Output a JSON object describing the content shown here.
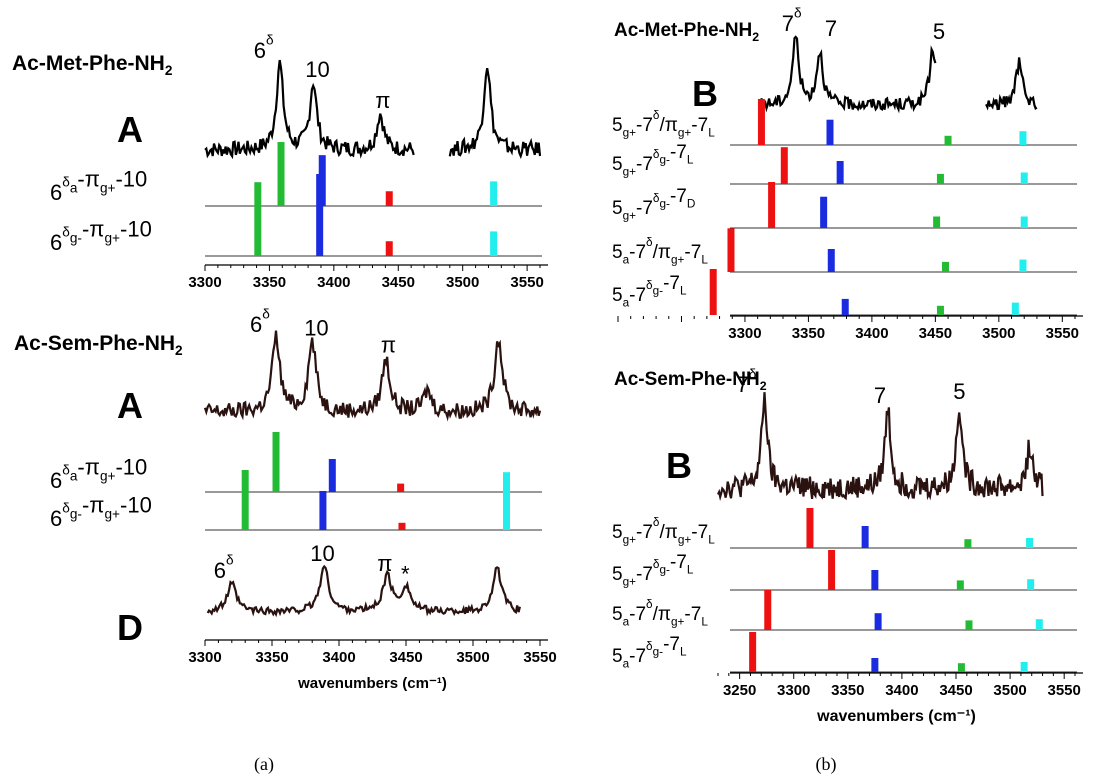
{
  "captions": {
    "a": "(a)",
    "b": "(b)"
  },
  "colors": {
    "green": "#22bb33",
    "blue": "#1a2be0",
    "red": "#ee1111",
    "cyan": "#22eeee",
    "trace": "#000000",
    "trace_dark": "#2a1210"
  },
  "chart_data": [
    {
      "id": "a-top",
      "type": "bar",
      "molecule": "Ac-Met-Phe-NH",
      "panel_letter": "A",
      "xlim": [
        3300,
        3560
      ],
      "xticks": [
        3300,
        3350,
        3400,
        3450,
        3500,
        3550
      ],
      "xlabel": "",
      "spectrum": {
        "name": "experiment",
        "segments": [
          [
            3300,
            3462
          ],
          [
            3490,
            3560
          ]
        ],
        "peaks": [
          {
            "x": 3358,
            "h": 1.0,
            "label": "6",
            "sup": "δ"
          },
          {
            "x": 3384,
            "h": 0.78,
            "label": "10"
          },
          {
            "x": 3436,
            "h": 0.42,
            "label": "π"
          },
          {
            "x": 3519,
            "h": 1.0
          }
        ]
      },
      "conformers": [
        {
          "label": {
            "base": "6",
            "sup": "δ",
            "sub": "a",
            "rest": "-π",
            "rsub": "g+",
            "tail": "-10"
          },
          "sticks": [
            {
              "x": 3359,
              "h": 0.78,
              "c": "green"
            },
            {
              "x": 3391,
              "h": 0.62,
              "c": "blue"
            },
            {
              "x": 3443,
              "h": 0.18,
              "c": "red"
            },
            {
              "x": 3524,
              "h": 0.3,
              "c": "cyan"
            }
          ]
        },
        {
          "label": {
            "base": "6",
            "sup": "δ",
            "sub": "g-",
            "rest": "-π",
            "rsub": "g+",
            "tail": "-10"
          },
          "sticks": [
            {
              "x": 3341,
              "h": 0.9,
              "c": "green"
            },
            {
              "x": 3389,
              "h": 1.0,
              "c": "blue"
            },
            {
              "x": 3443,
              "h": 0.18,
              "c": "red"
            },
            {
              "x": 3524,
              "h": 0.3,
              "c": "cyan"
            }
          ]
        }
      ]
    },
    {
      "id": "a-bottom",
      "type": "bar",
      "molecule": "Ac-Sem-Phe-NH",
      "panel_letter": "A",
      "panel_letter_2": "D",
      "xlim": [
        3300,
        3550
      ],
      "xticks": [
        3300,
        3350,
        3400,
        3450,
        3500,
        3550
      ],
      "xlabel": "wavenumbers (cm⁻¹)",
      "spectrum": {
        "name": "experiment A",
        "segments": [
          [
            3300,
            3550
          ]
        ],
        "peaks": [
          {
            "x": 3353,
            "h": 1.0,
            "label": "6",
            "sup": "δ"
          },
          {
            "x": 3380,
            "h": 0.95,
            "label": "10"
          },
          {
            "x": 3435,
            "h": 0.72,
            "label": "π"
          },
          {
            "x": 3466,
            "h": 0.28
          },
          {
            "x": 3519,
            "h": 1.0
          }
        ]
      },
      "spectrum_d": {
        "name": "experiment D",
        "peaks": [
          {
            "x": 3320,
            "h": 0.62,
            "label": "6",
            "sup": "δ"
          },
          {
            "x": 3389,
            "h": 1.0,
            "label": "10"
          },
          {
            "x": 3436,
            "h": 0.78,
            "label": "π"
          },
          {
            "x": 3450,
            "h": 0.55,
            "label": "*"
          },
          {
            "x": 3518,
            "h": 0.95
          }
        ]
      },
      "conformers": [
        {
          "label": {
            "base": "6",
            "sup": "δ",
            "sub": "a",
            "rest": "-π",
            "rsub": "g+",
            "tail": "-10"
          },
          "sticks": [
            {
              "x": 3353,
              "h": 1.0,
              "c": "green"
            },
            {
              "x": 3395,
              "h": 0.55,
              "c": "blue"
            },
            {
              "x": 3446,
              "h": 0.14,
              "c": "red"
            },
            {
              "x": 3525,
              "h": 0.33,
              "c": "cyan"
            }
          ]
        },
        {
          "label": {
            "base": "6",
            "sup": "δ",
            "sub": "g-",
            "rest": "-π",
            "rsub": "g+",
            "tail": "-10"
          },
          "sticks": [
            {
              "x": 3330,
              "h": 1.0,
              "c": "green"
            },
            {
              "x": 3388,
              "h": 0.65,
              "c": "blue"
            },
            {
              "x": 3447,
              "h": 0.12,
              "c": "red"
            },
            {
              "x": 3525,
              "h": 0.9,
              "c": "cyan"
            }
          ]
        }
      ]
    },
    {
      "id": "b-top",
      "type": "bar",
      "molecule": "Ac-Met-Phe-NH",
      "panel_letter": "B",
      "xlim": [
        3200,
        3560
      ],
      "xticks": [
        3300,
        3350,
        3400,
        3450,
        3500,
        3550
      ],
      "xlabel": "",
      "spectrum": {
        "name": "experiment",
        "segments": [
          [
            3313,
            3450
          ],
          [
            3490,
            3530
          ]
        ],
        "peaks": [
          {
            "x": 3340,
            "h": 1.0,
            "label": "7",
            "sup": "δ"
          },
          {
            "x": 3359,
            "h": 0.78,
            "label": "7"
          },
          {
            "x": 3448,
            "h": 0.82,
            "label": "5"
          },
          {
            "x": 3516,
            "h": 0.62
          }
        ]
      },
      "conformers": [
        {
          "label": {
            "base": "5",
            "sub": "g+",
            "mid": "-7",
            "sup": "δ",
            "rest": "/π",
            "rsub": "g+",
            "tail": "-7",
            "tsub": "L"
          },
          "sticks": [
            {
              "x": 3313,
              "h": 1.0,
              "c": "red"
            },
            {
              "x": 3367,
              "h": 0.55,
              "c": "blue"
            },
            {
              "x": 3460,
              "h": 0.2,
              "c": "green"
            },
            {
              "x": 3519,
              "h": 0.3,
              "c": "cyan"
            }
          ]
        },
        {
          "label": {
            "base": "5",
            "sub": "g+",
            "mid": "-7",
            "sup": "δ",
            "rest": "-7",
            "rsub": "L",
            "msub": "g-"
          },
          "sticks": [
            {
              "x": 3331,
              "h": 0.8,
              "c": "red"
            },
            {
              "x": 3375,
              "h": 0.5,
              "c": "blue"
            },
            {
              "x": 3454,
              "h": 0.22,
              "c": "green"
            },
            {
              "x": 3520,
              "h": 0.25,
              "c": "cyan"
            }
          ]
        },
        {
          "label": {
            "base": "5",
            "sub": "g+",
            "mid": "-7",
            "sup": "δ",
            "rest": "-7",
            "rsub": "D",
            "msub": "g-"
          },
          "sticks": [
            {
              "x": 3321,
              "h": 1.0,
              "c": "red"
            },
            {
              "x": 3362,
              "h": 0.68,
              "c": "blue"
            },
            {
              "x": 3451,
              "h": 0.25,
              "c": "green"
            },
            {
              "x": 3520,
              "h": 0.25,
              "c": "cyan"
            }
          ]
        },
        {
          "label": {
            "base": "5",
            "sub": "a",
            "mid": "-7",
            "sup": "δ",
            "rest": "/π",
            "rsub": "g+",
            "tail": "-7",
            "tsub": "L"
          },
          "sticks": [
            {
              "x": 3289,
              "h": 0.95,
              "c": "red"
            },
            {
              "x": 3368,
              "h": 0.5,
              "c": "blue"
            },
            {
              "x": 3458,
              "h": 0.22,
              "c": "green"
            },
            {
              "x": 3519,
              "h": 0.27,
              "c": "cyan"
            }
          ]
        },
        {
          "label": {
            "base": "5",
            "sub": "a",
            "mid": "-7",
            "sup": "δ",
            "rest": "-7",
            "rsub": "L",
            "msub": "g-"
          },
          "sticks": [
            {
              "x": 3275,
              "h": 1.0,
              "c": "red"
            },
            {
              "x": 3379,
              "h": 0.35,
              "c": "blue"
            },
            {
              "x": 3454,
              "h": 0.2,
              "c": "green"
            },
            {
              "x": 3513,
              "h": 0.27,
              "c": "cyan"
            }
          ]
        }
      ]
    },
    {
      "id": "b-bottom",
      "type": "bar",
      "molecule": "Ac-Sem-Phe-NH",
      "panel_letter": "B",
      "xlim": [
        3230,
        3560
      ],
      "xticks": [
        3250,
        3300,
        3350,
        3400,
        3450,
        3500,
        3550
      ],
      "xlabel": "wavenumbers (cm⁻¹)",
      "spectrum": {
        "name": "experiment",
        "segments": [
          [
            3230,
            3530
          ]
        ],
        "peaks": [
          {
            "x": 3273,
            "h": 1.0,
            "label": "7",
            "sup": "δ"
          },
          {
            "x": 3387,
            "h": 0.88,
            "label": "7"
          },
          {
            "x": 3453,
            "h": 0.92,
            "label": "5"
          },
          {
            "x": 3518,
            "h": 0.45
          }
        ]
      },
      "conformers": [
        {
          "label": {
            "base": "5",
            "sub": "g+",
            "mid": "-7",
            "sup": "δ",
            "rest": "/π",
            "rsub": "g+",
            "tail": "-7",
            "tsub": "L"
          },
          "sticks": [
            {
              "x": 3315,
              "h": 1.0,
              "c": "red"
            },
            {
              "x": 3366,
              "h": 0.55,
              "c": "blue"
            },
            {
              "x": 3461,
              "h": 0.22,
              "c": "green"
            },
            {
              "x": 3518,
              "h": 0.25,
              "c": "cyan"
            }
          ]
        },
        {
          "label": {
            "base": "5",
            "sub": "g+",
            "mid": "-7",
            "sup": "δ",
            "rest": "-7",
            "rsub": "L",
            "msub": "g-"
          },
          "sticks": [
            {
              "x": 3335,
              "h": 1.0,
              "c": "red"
            },
            {
              "x": 3375,
              "h": 0.5,
              "c": "blue"
            },
            {
              "x": 3454,
              "h": 0.24,
              "c": "green"
            },
            {
              "x": 3519,
              "h": 0.27,
              "c": "cyan"
            }
          ]
        },
        {
          "label": {
            "base": "5",
            "sub": "a",
            "mid": "-7",
            "sup": "δ",
            "rest": "/π",
            "rsub": "g+",
            "tail": "-7",
            "tsub": "L"
          },
          "sticks": [
            {
              "x": 3276,
              "h": 1.0,
              "c": "red"
            },
            {
              "x": 3378,
              "h": 0.42,
              "c": "blue"
            },
            {
              "x": 3462,
              "h": 0.24,
              "c": "green"
            },
            {
              "x": 3527,
              "h": 0.27,
              "c": "cyan"
            }
          ]
        },
        {
          "label": {
            "base": "5",
            "sub": "a",
            "mid": "-7",
            "sup": "δ",
            "rest": "-7",
            "rsub": "L",
            "msub": "g-"
          },
          "sticks": [
            {
              "x": 3262,
              "h": 1.0,
              "c": "red"
            },
            {
              "x": 3375,
              "h": 0.35,
              "c": "blue"
            },
            {
              "x": 3455,
              "h": 0.22,
              "c": "green"
            },
            {
              "x": 3513,
              "h": 0.25,
              "c": "cyan"
            }
          ]
        }
      ]
    }
  ]
}
